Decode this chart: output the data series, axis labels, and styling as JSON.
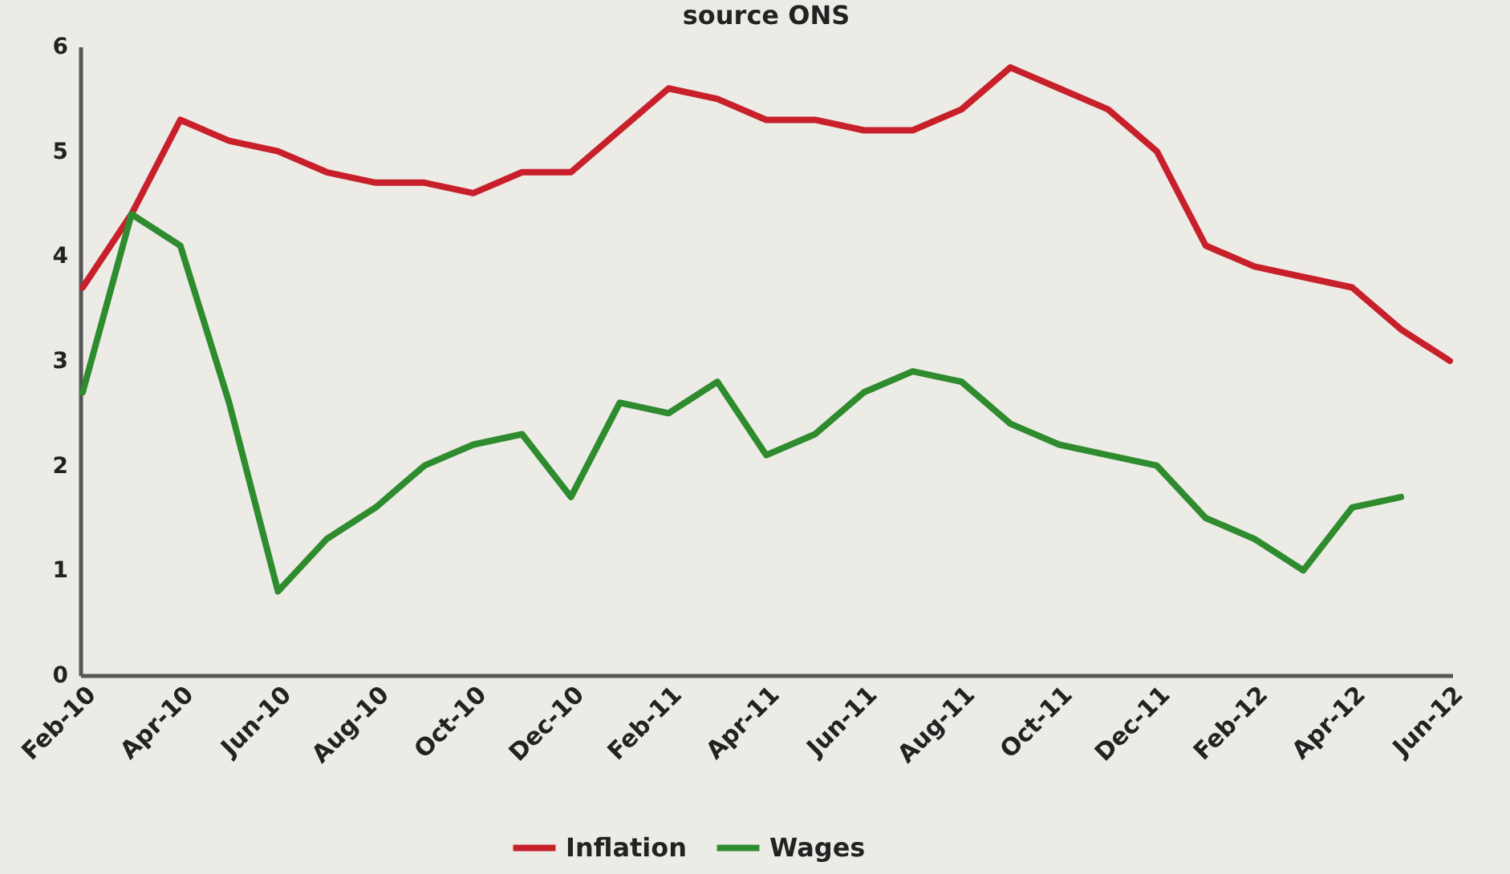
{
  "chart_data": {
    "type": "line",
    "title": "source ONS",
    "categories": [
      "Feb-10",
      null,
      "Apr-10",
      null,
      "Jun-10",
      null,
      "Aug-10",
      null,
      "Oct-10",
      null,
      "Dec-10",
      null,
      "Feb-11",
      null,
      "Apr-11",
      null,
      "Jun-11",
      null,
      "Aug-11",
      null,
      "Oct-11",
      null,
      "Dec-11",
      null,
      "Feb-12",
      null,
      "Apr-12",
      null,
      "Jun-12"
    ],
    "series": [
      {
        "name": "Inflation",
        "color": "#c8202a",
        "values": [
          3.7,
          4.4,
          5.3,
          5.1,
          5.0,
          4.8,
          4.7,
          4.7,
          4.6,
          4.8,
          4.8,
          5.2,
          5.6,
          5.5,
          5.3,
          5.3,
          5.2,
          5.2,
          5.4,
          5.8,
          5.6,
          5.4,
          5.0,
          4.1,
          3.9,
          3.8,
          3.7,
          3.3,
          3.0
        ]
      },
      {
        "name": "Wages",
        "color": "#2e8b2e",
        "values": [
          2.7,
          4.4,
          4.1,
          2.6,
          0.8,
          1.3,
          1.6,
          2.0,
          2.2,
          2.3,
          1.7,
          2.6,
          2.5,
          2.8,
          2.1,
          2.3,
          2.7,
          2.9,
          2.8,
          2.4,
          2.2,
          2.1,
          2.0,
          1.5,
          1.3,
          1.0,
          1.6,
          1.7,
          null
        ]
      }
    ],
    "ylim": [
      0,
      6
    ],
    "yticks": [
      0,
      1,
      2,
      3,
      4,
      5,
      6
    ],
    "grid": false,
    "legend": "bottom",
    "marker": "none",
    "line_style": "solid"
  }
}
